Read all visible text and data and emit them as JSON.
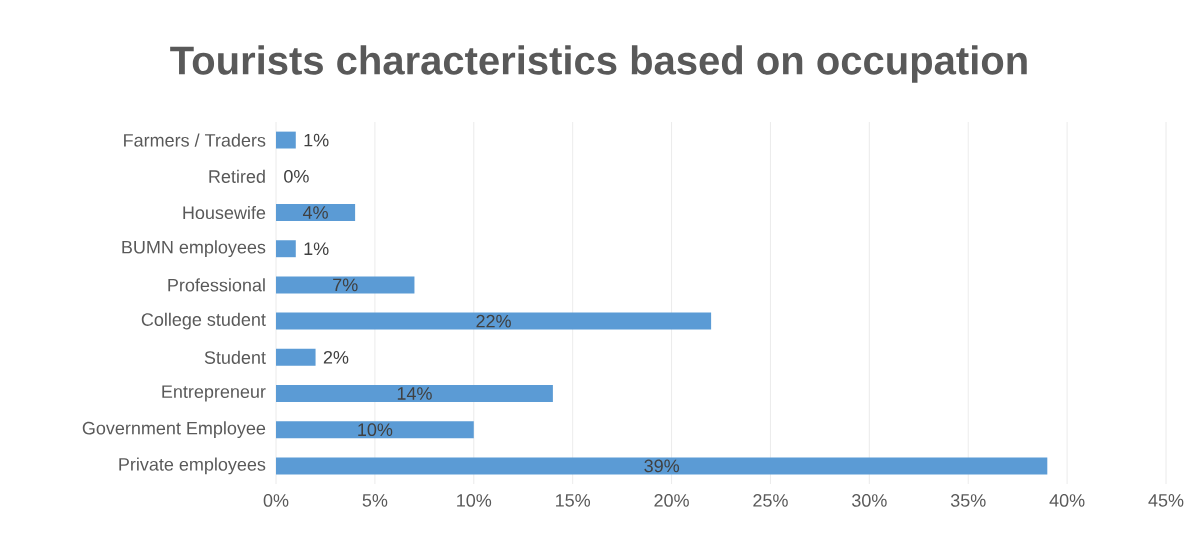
{
  "chart_data": {
    "type": "bar",
    "orientation": "horizontal",
    "title": "Tourists characteristics based on occupation",
    "categories": [
      "Farmers / Traders",
      "Retired",
      "Housewife",
      "BUMN employees",
      "Professional",
      "College student",
      "Student",
      "Entrepreneur",
      "Government Employee",
      "Private employees"
    ],
    "values": [
      1,
      0,
      4,
      1,
      7,
      22,
      2,
      14,
      10,
      39
    ],
    "value_labels": [
      "1%",
      "0%",
      "4%",
      "1%",
      "7%",
      "22%",
      "2%",
      "14%",
      "10%",
      "39%"
    ],
    "color": "#5b9bd5",
    "xlim": [
      0,
      45
    ],
    "xticks": [
      {
        "value": 0,
        "label": "0%"
      },
      {
        "value": 5,
        "label": "5%"
      },
      {
        "value": 10,
        "label": "10%"
      },
      {
        "value": 15,
        "label": "15%"
      },
      {
        "value": 20,
        "label": "20%"
      },
      {
        "value": 25,
        "label": "25%"
      },
      {
        "value": 30,
        "label": "30%"
      },
      {
        "value": 35,
        "label": "35%"
      },
      {
        "value": 40,
        "label": "40%"
      },
      {
        "value": 45,
        "label": "45%"
      }
    ],
    "grid": "x"
  }
}
